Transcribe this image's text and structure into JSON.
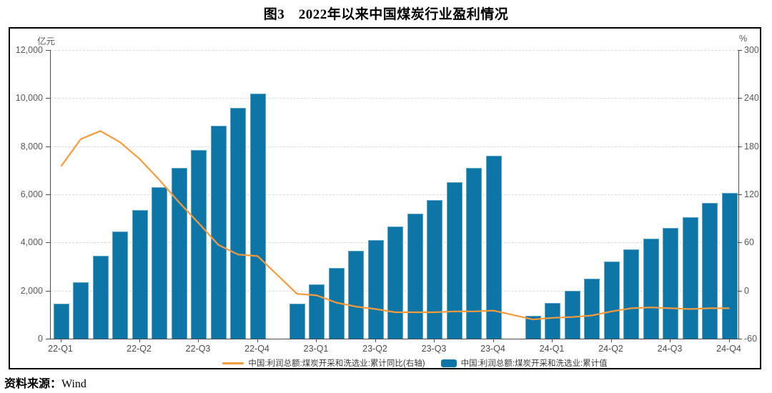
{
  "title": "图3　2022年以来中国煤炭行业盈利情况",
  "source": {
    "prefix": "资料来源：",
    "name": "Wind"
  },
  "chart_data": {
    "type": "bar+line",
    "title": "图3 2022年以来中国煤炭行业盈利情况",
    "x": [
      "2022-02",
      "2022-03",
      "2022-04",
      "2022-05",
      "2022-06",
      "2022-07",
      "2022-08",
      "2022-09",
      "2022-10",
      "2022-11",
      "2022-12",
      "2023-02",
      "2023-03",
      "2023-04",
      "2023-05",
      "2023-06",
      "2023-07",
      "2023-08",
      "2023-09",
      "2023-10",
      "2023-11",
      "2023-12",
      "2024-02",
      "2024-03",
      "2024-04",
      "2024-05",
      "2024-06",
      "2024-07",
      "2024-08",
      "2024-09",
      "2024-10",
      "2024-11",
      "2024-12"
    ],
    "series": [
      {
        "name": "中国:利润总额:煤炭开采和洗选业:累计同比(右轴)",
        "type": "line",
        "axis": "right",
        "unit": "%",
        "color": "#f79a3b",
        "values": [
          155,
          189,
          199,
          185,
          164,
          138,
          110,
          84,
          57,
          45,
          43,
          -4,
          -6,
          -15,
          -20,
          -23,
          -27,
          -27,
          -27,
          -26,
          -26,
          -25,
          -36,
          -34,
          -33,
          -31,
          -26,
          -22,
          -21,
          -22,
          -23,
          -22,
          -22
        ]
      },
      {
        "name": "中国:利润总额:煤炭开采和洗选业:累计值",
        "type": "bar",
        "axis": "left",
        "unit": "亿元",
        "color": "#0d76a7",
        "values": [
          1450,
          2350,
          3450,
          4450,
          5350,
          6300,
          7100,
          7850,
          8850,
          9600,
          10200,
          1450,
          2250,
          2950,
          3650,
          4100,
          4650,
          5200,
          5750,
          6500,
          7100,
          7600,
          950,
          1500,
          2000,
          2500,
          3200,
          3700,
          4150,
          4600,
          5050,
          5650,
          6050
        ]
      }
    ],
    "left_axis": {
      "unit": "亿元",
      "min": 0,
      "max": 12000,
      "tick_values": [
        0,
        2000,
        4000,
        6000,
        8000,
        10000,
        12000
      ],
      "tick_labels": [
        "0",
        "2,000",
        "4,000",
        "6,000",
        "8,000",
        "10,000",
        "12,000"
      ]
    },
    "right_axis": {
      "unit": "%",
      "min": -60,
      "max": 300,
      "tick_values": [
        -60,
        0,
        60,
        120,
        180,
        240,
        300
      ],
      "tick_labels": [
        "-60",
        "0",
        "60",
        "120",
        "180",
        "240",
        "300"
      ]
    },
    "x_ticks": [
      {
        "label": "22-Q1",
        "month": "2022-02"
      },
      {
        "label": "22-Q2",
        "month": "2022-06"
      },
      {
        "label": "22-Q3",
        "month": "2022-09"
      },
      {
        "label": "22-Q4",
        "month": "2022-12"
      },
      {
        "label": "23-Q1",
        "month": "2023-03"
      },
      {
        "label": "23-Q2",
        "month": "2023-06"
      },
      {
        "label": "23-Q3",
        "month": "2023-09"
      },
      {
        "label": "23-Q4",
        "month": "2023-12"
      },
      {
        "label": "24-Q1",
        "month": "2024-03"
      },
      {
        "label": "24-Q2",
        "month": "2024-06"
      },
      {
        "label": "24-Q3",
        "month": "2024-09"
      },
      {
        "label": "24-Q4",
        "month": "2024-12"
      }
    ],
    "gaps_after_index": [
      10,
      21
    ],
    "grid": true,
    "legend_position": "bottom"
  }
}
